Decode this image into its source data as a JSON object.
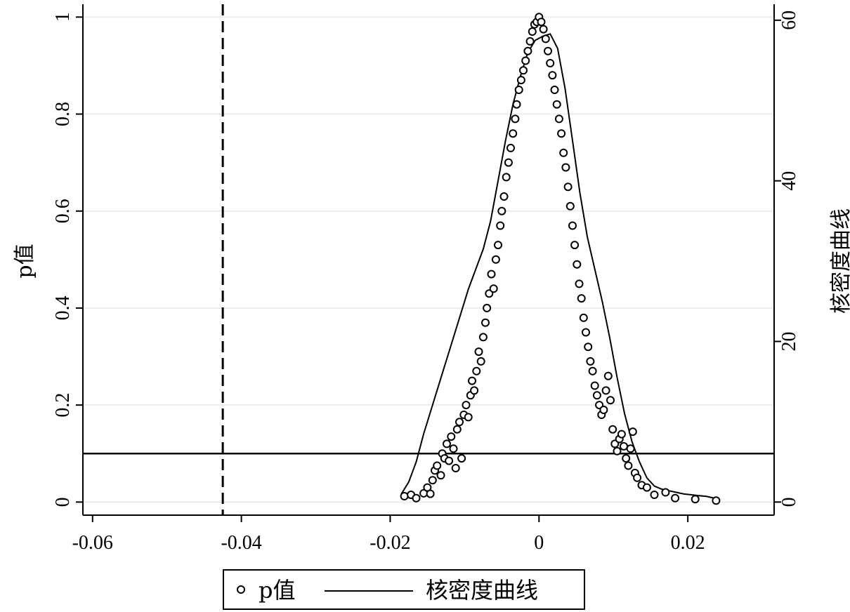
{
  "chart_data": {
    "type": "scatter",
    "xlabel": "",
    "ylabel_left": "p值",
    "ylabel_right": "核密度曲线",
    "x_ticks": [
      "-0.06",
      "-0.04",
      "-0.02",
      "0",
      "0.02"
    ],
    "x_tick_values": [
      -0.06,
      -0.04,
      -0.02,
      0,
      0.02
    ],
    "y_left_ticks": [
      "0",
      "0.2",
      "0.4",
      "0.6",
      "0.8",
      "1"
    ],
    "y_left_tick_values": [
      0,
      0.2,
      0.4,
      0.6,
      0.8,
      1
    ],
    "y_right_ticks": [
      "0",
      "20",
      "40",
      "60"
    ],
    "y_right_tick_values": [
      0,
      20,
      40,
      60
    ],
    "xlim": [
      -0.0613,
      0.0316
    ],
    "ylim_left": [
      -0.027,
      1.0265
    ],
    "ylim_right": [
      0,
      60
    ],
    "grid": true,
    "legend": {
      "position": "bottom",
      "entries": [
        "p值",
        "核密度曲线"
      ]
    },
    "reference_lines": {
      "vertical_dashed_x": -0.0425,
      "horizontal_solid_y": 0.1
    },
    "series": [
      {
        "name": "p值",
        "type": "scatter",
        "marker": "hollow-circle",
        "points": [
          [
            -0.0181,
            0.012
          ],
          [
            -0.0172,
            0.015
          ],
          [
            -0.0165,
            0.008
          ],
          [
            -0.0155,
            0.018
          ],
          [
            -0.015,
            0.03
          ],
          [
            -0.0146,
            0.017
          ],
          [
            -0.0143,
            0.045
          ],
          [
            -0.014,
            0.065
          ],
          [
            -0.0137,
            0.075
          ],
          [
            -0.0132,
            0.055
          ],
          [
            -0.013,
            0.1
          ],
          [
            -0.0127,
            0.09
          ],
          [
            -0.0124,
            0.12
          ],
          [
            -0.0121,
            0.085
          ],
          [
            -0.0118,
            0.135
          ],
          [
            -0.0115,
            0.11
          ],
          [
            -0.0112,
            0.07
          ],
          [
            -0.011,
            0.15
          ],
          [
            -0.0107,
            0.165
          ],
          [
            -0.0104,
            0.09
          ],
          [
            -0.0101,
            0.18
          ],
          [
            -0.0098,
            0.2
          ],
          [
            -0.0095,
            0.175
          ],
          [
            -0.0092,
            0.22
          ],
          [
            -0.009,
            0.25
          ],
          [
            -0.0087,
            0.23
          ],
          [
            -0.0084,
            0.27
          ],
          [
            -0.0081,
            0.31
          ],
          [
            -0.0078,
            0.29
          ],
          [
            -0.0075,
            0.34
          ],
          [
            -0.0072,
            0.37
          ],
          [
            -0.007,
            0.4
          ],
          [
            -0.0067,
            0.43
          ],
          [
            -0.0064,
            0.47
          ],
          [
            -0.0061,
            0.44
          ],
          [
            -0.0058,
            0.5
          ],
          [
            -0.0055,
            0.53
          ],
          [
            -0.0052,
            0.57
          ],
          [
            -0.005,
            0.6
          ],
          [
            -0.0047,
            0.63
          ],
          [
            -0.0044,
            0.67
          ],
          [
            -0.0041,
            0.7
          ],
          [
            -0.0038,
            0.73
          ],
          [
            -0.0035,
            0.76
          ],
          [
            -0.0032,
            0.79
          ],
          [
            -0.003,
            0.82
          ],
          [
            -0.0027,
            0.85
          ],
          [
            -0.0024,
            0.87
          ],
          [
            -0.0021,
            0.89
          ],
          [
            -0.0018,
            0.91
          ],
          [
            -0.0015,
            0.93
          ],
          [
            -0.0012,
            0.95
          ],
          [
            -0.0009,
            0.97
          ],
          [
            -0.0006,
            0.985
          ],
          [
            -0.0003,
            0.99
          ],
          [
            0.0,
            1.0
          ],
          [
            0.0003,
            0.99
          ],
          [
            0.0006,
            0.975
          ],
          [
            0.0009,
            0.955
          ],
          [
            0.0012,
            0.93
          ],
          [
            0.0015,
            0.905
          ],
          [
            0.0018,
            0.88
          ],
          [
            0.0021,
            0.85
          ],
          [
            0.0024,
            0.82
          ],
          [
            0.0027,
            0.79
          ],
          [
            0.003,
            0.76
          ],
          [
            0.0033,
            0.72
          ],
          [
            0.0036,
            0.69
          ],
          [
            0.0039,
            0.65
          ],
          [
            0.0042,
            0.61
          ],
          [
            0.0045,
            0.57
          ],
          [
            0.0048,
            0.53
          ],
          [
            0.0051,
            0.49
          ],
          [
            0.0054,
            0.45
          ],
          [
            0.0057,
            0.42
          ],
          [
            0.006,
            0.38
          ],
          [
            0.0063,
            0.35
          ],
          [
            0.0066,
            0.32
          ],
          [
            0.0069,
            0.29
          ],
          [
            0.0072,
            0.27
          ],
          [
            0.0075,
            0.24
          ],
          [
            0.0078,
            0.22
          ],
          [
            0.0081,
            0.2
          ],
          [
            0.0084,
            0.18
          ],
          [
            0.0087,
            0.19
          ],
          [
            0.009,
            0.23
          ],
          [
            0.0093,
            0.26
          ],
          [
            0.0096,
            0.21
          ],
          [
            0.0099,
            0.15
          ],
          [
            0.0102,
            0.12
          ],
          [
            0.0105,
            0.105
          ],
          [
            0.0108,
            0.13
          ],
          [
            0.0111,
            0.14
          ],
          [
            0.0114,
            0.115
          ],
          [
            0.0117,
            0.09
          ],
          [
            0.012,
            0.075
          ],
          [
            0.0123,
            0.11
          ],
          [
            0.0126,
            0.145
          ],
          [
            0.0129,
            0.06
          ],
          [
            0.0132,
            0.05
          ],
          [
            0.0138,
            0.035
          ],
          [
            0.0145,
            0.03
          ],
          [
            0.0155,
            0.015
          ],
          [
            0.017,
            0.02
          ],
          [
            0.0183,
            0.008
          ],
          [
            0.021,
            0.006
          ],
          [
            0.0238,
            0.003
          ]
        ]
      },
      {
        "name": "核密度曲线",
        "type": "line",
        "axis": "right",
        "x": [
          -0.0185,
          -0.0175,
          -0.0165,
          -0.0155,
          -0.0145,
          -0.0135,
          -0.0125,
          -0.0115,
          -0.0105,
          -0.0095,
          -0.0085,
          -0.0075,
          -0.0065,
          -0.0055,
          -0.0045,
          -0.0035,
          -0.0025,
          -0.0015,
          -0.0005,
          0.0005,
          0.0015,
          0.0025,
          0.0035,
          0.0045,
          0.0055,
          0.0065,
          0.0075,
          0.0085,
          0.0095,
          0.0105,
          0.0115,
          0.0125,
          0.0135,
          0.0145,
          0.0155,
          0.0165,
          0.0175,
          0.0185,
          0.0195,
          0.0205,
          0.0215,
          0.0225,
          0.0235
        ],
        "y": [
          1.0,
          2.5,
          5.0,
          8.5,
          11.5,
          14.5,
          17.5,
          20.5,
          23.5,
          26.5,
          29.0,
          31.5,
          35.0,
          40.0,
          45.0,
          49.5,
          53.0,
          56.0,
          57.5,
          58.0,
          58.3,
          56.5,
          51.5,
          45.0,
          38.5,
          33.0,
          29.0,
          25.0,
          20.5,
          15.5,
          11.0,
          7.5,
          5.0,
          3.0,
          2.0,
          1.6,
          1.4,
          1.2,
          1.0,
          0.9,
          0.8,
          0.7,
          0.5
        ]
      }
    ]
  }
}
